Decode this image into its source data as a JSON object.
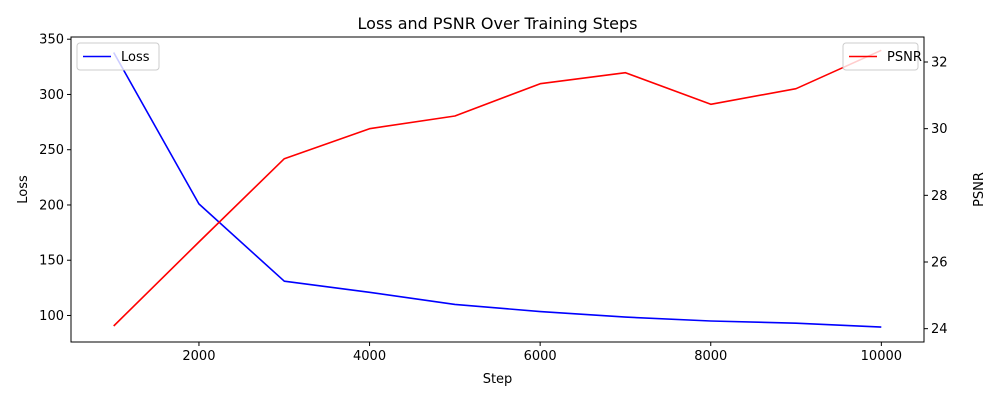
{
  "chart_data": {
    "type": "line",
    "title": "Loss and PSNR Over Training Steps",
    "xlabel": "Step",
    "ylabel_left": "Loss",
    "ylabel_right": "PSNR",
    "x": [
      1000,
      2000,
      3000,
      4000,
      5000,
      6000,
      7000,
      8000,
      9000,
      10000
    ],
    "xlim": [
      500,
      10500
    ],
    "ylim_left": [
      76,
      352
    ],
    "ylim_right": [
      23.6,
      32.75
    ],
    "xticks": [
      2000,
      4000,
      6000,
      8000,
      10000
    ],
    "yticks_left": [
      100,
      150,
      200,
      250,
      300,
      350
    ],
    "yticks_right": [
      24,
      26,
      28,
      30,
      32
    ],
    "grid": false,
    "series": [
      {
        "name": "Loss",
        "axis": "left",
        "color": "#0000ff",
        "values": [
          338,
          201,
          131,
          121,
          110,
          103.5,
          98.5,
          95,
          93,
          89.5
        ],
        "legend_position": "top-left"
      },
      {
        "name": "PSNR",
        "axis": "right",
        "color": "#ff0000",
        "values": [
          24.08,
          26.6,
          29.1,
          30.0,
          30.38,
          31.35,
          31.68,
          30.73,
          31.2,
          32.35
        ],
        "legend_position": "top-right"
      }
    ]
  }
}
